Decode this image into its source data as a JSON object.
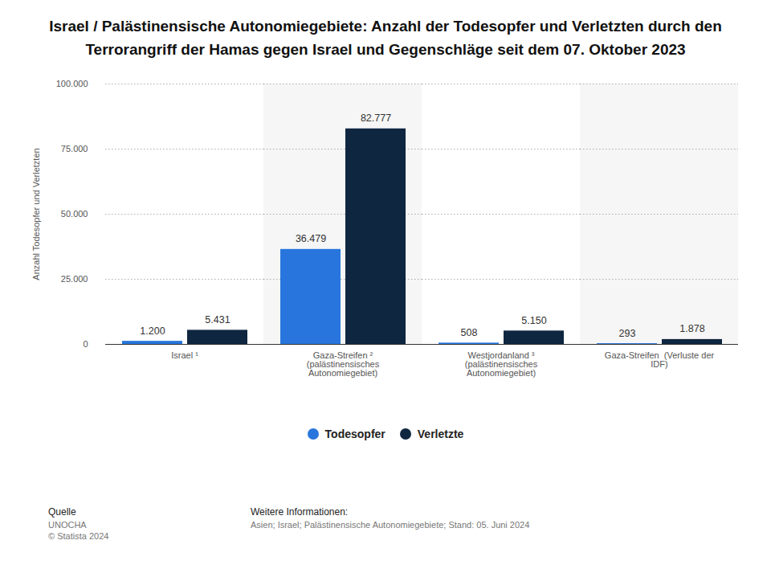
{
  "chart_data": {
    "type": "bar",
    "title": "Israel / Palästinensische Autonomiegebiete: Anzahl der Todesopfer und Verletzten durch den Terrorangriff der Hamas gegen Israel und Gegenschläge seit dem 07. Oktober 2023",
    "y_label": "Anzahl Todesopfer und Verletzten",
    "categories": [
      "Israel ¹",
      "Gaza-Streifen ²\n(palästinensisches\nAutonomiegebiet)",
      "Westjordanland ³\n(palästinensisches\nAutonomiegebiet)",
      "Gaza-Streifen  (Verluste der\nIDF)"
    ],
    "series": [
      {
        "name": "Todesopfer",
        "color": "#2876dd",
        "values": [
          1200,
          36479,
          508,
          293
        ],
        "value_labels": [
          "1.200",
          "36.479",
          "508",
          "293"
        ]
      },
      {
        "name": "Verletzte",
        "color": "#0f2640",
        "values": [
          5431,
          82777,
          5150,
          1878
        ],
        "value_labels": [
          "5.431",
          "82.777",
          "5.150",
          "1.878"
        ]
      }
    ],
    "ylim": [
      0,
      100000
    ],
    "yticks": [
      0,
      {
        "value": 25000,
        "label": "25.000"
      },
      {
        "value": 50000,
        "label": "50.000"
      },
      {
        "value": 75000,
        "label": "75.000"
      },
      {
        "value": 100000,
        "label": "100.000"
      }
    ],
    "grid": true,
    "legend": "bottom",
    "data_labels": true,
    "source_label": "Quelle",
    "source": [
      "UNOCHA",
      "© Statista 2024"
    ],
    "info_label": "Weitere Informationen:",
    "info": "Asien; Israel; Palästinensische Autonomiegebiete; Stand: 05. Juni 2024"
  }
}
